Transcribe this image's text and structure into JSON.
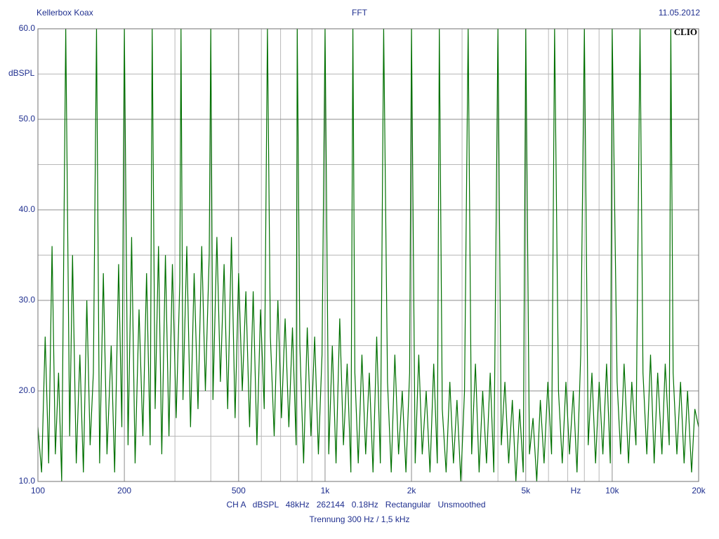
{
  "chart_data": {
    "type": "line",
    "header_left": "Kellerbox Koax",
    "title": "FFT",
    "date": "11.05.2012",
    "logo": "CLIO",
    "ylabel": "dBSPL",
    "xlabel": "Hz",
    "footer": [
      "CH A   dBSPL   48kHz   262144   0.18Hz   Rectangular   Unsmoothed",
      "Trennung 300 Hz / 1,5 kHz"
    ],
    "log_x": true,
    "grid": true,
    "xlim": [
      100,
      20000
    ],
    "ylim": [
      10,
      60
    ],
    "xticks": [
      100,
      200,
      500,
      {
        "value": 1000,
        "label": "1k"
      },
      {
        "value": 2000,
        "label": "2k"
      },
      {
        "value": 5000,
        "label": "5k"
      },
      {
        "value": 10000,
        "label": "10k"
      },
      {
        "value": 20000,
        "label": "20k"
      }
    ],
    "xminor": [
      300,
      400,
      600,
      700,
      800,
      900,
      3000,
      4000,
      6000,
      7000,
      8000,
      9000
    ],
    "yticks": [
      {
        "value": 10,
        "label": "10.0"
      },
      {
        "value": 20,
        "label": "20.0"
      },
      {
        "value": 30,
        "label": "30.0"
      },
      {
        "value": 40,
        "label": "40.0"
      },
      {
        "value": 50,
        "label": "50.0"
      },
      {
        "value": 60,
        "label": "60.0"
      }
    ],
    "yminor": [
      15,
      25,
      35,
      45,
      55
    ],
    "x": [
      100,
      103,
      106,
      109,
      112,
      115,
      118,
      121,
      125,
      129,
      132,
      136,
      140,
      144,
      148,
      152,
      156,
      160,
      164,
      169,
      174,
      180,
      185,
      191,
      196,
      200,
      206,
      212,
      218,
      225,
      232,
      239,
      246,
      250,
      256,
      263,
      270,
      278,
      286,
      294,
      303,
      312,
      315,
      320,
      330,
      340,
      350,
      361,
      372,
      383,
      395,
      400,
      407,
      420,
      432,
      445,
      458,
      472,
      486,
      500,
      515,
      530,
      546,
      562,
      579,
      596,
      614,
      630,
      645,
      665,
      685,
      705,
      726,
      748,
      770,
      793,
      800,
      817,
      842,
      867,
      893,
      920,
      948,
      976,
      1000,
      1030,
      1060,
      1092,
      1125,
      1159,
      1194,
      1230,
      1250,
      1270,
      1305,
      1344,
      1385,
      1426,
      1469,
      1513,
      1558,
      1600,
      1650,
      1700,
      1750,
      1803,
      1857,
      1913,
      1970,
      2000,
      2060,
      2120,
      2180,
      2250,
      2320,
      2390,
      2460,
      2500,
      2560,
      2640,
      2720,
      2800,
      2880,
      2970,
      3060,
      3150,
      3240,
      3340,
      3440,
      3540,
      3650,
      3760,
      3870,
      4000,
      4110,
      4230,
      4360,
      4490,
      4620,
      4760,
      4900,
      5000,
      5150,
      5300,
      5460,
      5620,
      5790,
      5970,
      6150,
      6300,
      6500,
      6700,
      6900,
      7100,
      7320,
      7540,
      7770,
      8000,
      8250,
      8500,
      8750,
      9010,
      9280,
      9560,
      9850,
      10000,
      10400,
      10700,
      11000,
      11400,
      11700,
      12100,
      12500,
      12800,
      13200,
      13600,
      14000,
      14400,
      14900,
      15300,
      15800,
      16000,
      16300,
      16800,
      17300,
      17800,
      18300,
      18900,
      19400,
      20000
    ],
    "series": [
      {
        "color": "#007000",
        "values": [
          16,
          11,
          26,
          12,
          36,
          13,
          22,
          10,
          60,
          15,
          35,
          12,
          24,
          11,
          30,
          14,
          22,
          60,
          12,
          33,
          13,
          25,
          11,
          34,
          16,
          60,
          14,
          37,
          12,
          29,
          15,
          33,
          14,
          60,
          18,
          36,
          13,
          35,
          15,
          34,
          17,
          32,
          60,
          19,
          36,
          16,
          33,
          18,
          36,
          20,
          35,
          60,
          19,
          37,
          21,
          34,
          18,
          37,
          17,
          33,
          20,
          31,
          16,
          31,
          14,
          29,
          18,
          60,
          26,
          15,
          30,
          17,
          28,
          16,
          27,
          14,
          60,
          25,
          12,
          27,
          15,
          26,
          13,
          24,
          60,
          13,
          25,
          12,
          28,
          14,
          23,
          11,
          60,
          22,
          12,
          24,
          13,
          22,
          11,
          26,
          12,
          60,
          21,
          11,
          24,
          13,
          20,
          11,
          22,
          60,
          12,
          24,
          13,
          20,
          11,
          23,
          12,
          60,
          18,
          11,
          21,
          12,
          19,
          10,
          20,
          60,
          13,
          23,
          11,
          20,
          12,
          22,
          11,
          60,
          14,
          21,
          12,
          19,
          10,
          18,
          11,
          60,
          13,
          17,
          10,
          19,
          12,
          21,
          13,
          60,
          20,
          12,
          21,
          13,
          20,
          11,
          24,
          60,
          14,
          22,
          12,
          21,
          13,
          23,
          12,
          60,
          21,
          13,
          23,
          12,
          21,
          14,
          60,
          22,
          13,
          24,
          12,
          22,
          13,
          23,
          14,
          60,
          22,
          13,
          21,
          12,
          20,
          11,
          18,
          16
        ]
      }
    ]
  }
}
